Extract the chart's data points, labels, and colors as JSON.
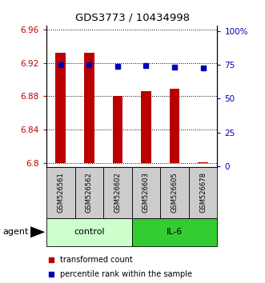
{
  "title": "GDS3773 / 10434998",
  "samples": [
    "GSM526561",
    "GSM526562",
    "GSM526602",
    "GSM526603",
    "GSM526605",
    "GSM526678"
  ],
  "bar_values": [
    6.932,
    6.932,
    6.88,
    6.886,
    6.889,
    6.801
  ],
  "percentile_values": [
    75.0,
    75.0,
    74.0,
    74.5,
    73.5,
    72.5
  ],
  "bar_color": "#bb0000",
  "dot_color": "#0000bb",
  "ylim_left": [
    6.795,
    6.965
  ],
  "ylim_right": [
    -0.5,
    104.0
  ],
  "yticks_left": [
    6.8,
    6.84,
    6.88,
    6.92,
    6.96
  ],
  "ytick_labels_left": [
    "6.8",
    "6.84",
    "6.88",
    "6.92",
    "6.96"
  ],
  "yticks_right": [
    0,
    25,
    50,
    75,
    100
  ],
  "ytick_labels_right": [
    "0",
    "25",
    "50",
    "75",
    "100%"
  ],
  "groups": [
    {
      "label": "control",
      "indices": [
        0,
        1,
        2
      ],
      "color": "#ccffcc"
    },
    {
      "label": "IL-6",
      "indices": [
        3,
        4,
        5
      ],
      "color": "#33cc33"
    }
  ],
  "agent_label": "agent",
  "legend_bar_label": "transformed count",
  "legend_dot_label": "percentile rank within the sample",
  "bar_width": 0.35,
  "baseline": 6.8,
  "bg_color": "#ffffff",
  "plot_bg": "#ffffff",
  "sample_box_color": "#cccccc",
  "grid_color": "#000000"
}
